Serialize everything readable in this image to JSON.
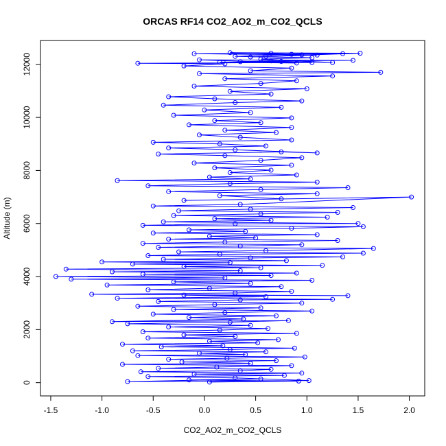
{
  "chart_data": {
    "type": "scatter",
    "title": "ORCAS RF14 CO2_AO2_m_CO2_QCLS",
    "xlabel": "CO2_AO2_m_CO2_QCLS",
    "ylabel": "Altitude (m)",
    "xlim": [
      -1.6,
      2.15
    ],
    "ylim": [
      -500,
      12900
    ],
    "x_ticks": [
      -1.5,
      -1.0,
      -0.5,
      0.0,
      0.5,
      1.0,
      1.5,
      2.0
    ],
    "x_tick_labels": [
      "-1.5",
      "-1.0",
      "-0.5",
      "0.0",
      "0.5",
      "1.0",
      "1.5",
      "2.0"
    ],
    "y_ticks": [
      0,
      2000,
      4000,
      6000,
      8000,
      10000,
      12000
    ],
    "y_tick_labels": [
      "0",
      "2000",
      "4000",
      "6000",
      "8000",
      "10000",
      "12000"
    ],
    "grid": false,
    "legend": "none",
    "marker": "open-circle",
    "connected": true,
    "colors": {
      "series": "#0000ff",
      "axis": "#000000",
      "background": "#ffffff"
    },
    "series": [
      {
        "values": [
          [
            0.05,
            20
          ],
          [
            0.92,
            60
          ],
          [
            -0.15,
            100
          ],
          [
            0.55,
            140
          ],
          [
            -0.75,
            40
          ],
          [
            1.02,
            80
          ],
          [
            0.3,
            180
          ],
          [
            -0.55,
            230
          ],
          [
            0.78,
            270
          ],
          [
            -0.1,
            320
          ],
          [
            0.95,
            360
          ],
          [
            -0.62,
            410
          ],
          [
            0.35,
            450
          ],
          [
            0.65,
            500
          ],
          [
            -0.45,
            540
          ],
          [
            0.12,
            590
          ],
          [
            0.85,
            640
          ],
          [
            -0.8,
            690
          ],
          [
            0.45,
            730
          ],
          [
            -0.22,
            780
          ],
          [
            0.7,
            830
          ],
          [
            -0.35,
            880
          ],
          [
            0.22,
            920
          ],
          [
            0.98,
            970
          ],
          [
            -0.65,
            1020
          ],
          [
            0.4,
            1060
          ],
          [
            -0.05,
            1110
          ],
          [
            0.6,
            1160
          ],
          [
            -0.7,
            1200
          ],
          [
            0.25,
            1250
          ],
          [
            0.88,
            1300
          ],
          [
            -0.42,
            1350
          ],
          [
            0.18,
            1390
          ],
          [
            -0.8,
            1450
          ],
          [
            0.52,
            1500
          ],
          [
            0.05,
            1560
          ],
          [
            0.72,
            1620
          ],
          [
            -0.55,
            1680
          ],
          [
            0.3,
            1740
          ],
          [
            -0.2,
            1800
          ],
          [
            0.9,
            1860
          ],
          [
            -0.6,
            1920
          ],
          [
            0.15,
            1980
          ],
          [
            0.62,
            2040
          ],
          [
            -0.35,
            2100
          ],
          [
            0.45,
            2160
          ],
          [
            -0.75,
            2220
          ],
          [
            0.25,
            2280
          ],
          [
            0.82,
            2340
          ],
          [
            -0.9,
            2300
          ],
          [
            0.38,
            2400
          ],
          [
            -0.15,
            2460
          ],
          [
            0.7,
            2520
          ],
          [
            -0.5,
            2580
          ],
          [
            0.2,
            2640
          ],
          [
            1.05,
            2700
          ],
          [
            -0.3,
            2760
          ],
          [
            0.55,
            2820
          ],
          [
            -0.65,
            2880
          ],
          [
            0.1,
            2940
          ],
          [
            0.95,
            3000
          ],
          [
            -0.45,
            3060
          ],
          [
            0.35,
            3120
          ],
          [
            1.25,
            3140
          ],
          [
            -0.85,
            3180
          ],
          [
            0.6,
            3240
          ],
          [
            -0.2,
            3300
          ],
          [
            1.4,
            3280
          ],
          [
            -1.1,
            3330
          ],
          [
            0.3,
            3380
          ],
          [
            0.85,
            3440
          ],
          [
            -0.55,
            3500
          ],
          [
            0.05,
            3560
          ],
          [
            0.75,
            3620
          ],
          [
            -0.95,
            3680
          ],
          [
            0.45,
            3740
          ],
          [
            -0.3,
            3800
          ],
          [
            1.05,
            3860
          ],
          [
            -1.3,
            3900
          ],
          [
            0.2,
            3950
          ],
          [
            -1.45,
            4000
          ],
          [
            0.65,
            4040
          ],
          [
            -0.6,
            4090
          ],
          [
            0.9,
            4130
          ],
          [
            -0.9,
            4180
          ],
          [
            0.35,
            4220
          ],
          [
            -1.35,
            4280
          ],
          [
            0.55,
            4330
          ],
          [
            -0.2,
            4380
          ],
          [
            1.15,
            4420
          ],
          [
            -0.7,
            4470
          ],
          [
            0.25,
            4520
          ],
          [
            -1.0,
            4550
          ],
          [
            0.8,
            4600
          ],
          [
            -0.4,
            4650
          ],
          [
            0.45,
            4700
          ],
          [
            1.35,
            4740
          ],
          [
            -0.55,
            4790
          ],
          [
            0.15,
            4840
          ],
          [
            1.55,
            4880
          ],
          [
            -0.25,
            4930
          ],
          [
            0.6,
            4980
          ],
          [
            1.65,
            5060
          ],
          [
            -0.45,
            5100
          ],
          [
            0.35,
            5150
          ],
          [
            0.95,
            5200
          ],
          [
            -0.6,
            5250
          ],
          [
            0.2,
            5300
          ],
          [
            1.3,
            5360
          ],
          [
            -0.35,
            5410
          ],
          [
            0.5,
            5460
          ],
          [
            0.05,
            5520
          ],
          [
            1.1,
            5580
          ],
          [
            -0.5,
            5640
          ],
          [
            0.4,
            5700
          ],
          [
            -0.15,
            5760
          ],
          [
            0.85,
            5820
          ],
          [
            1.55,
            5880
          ],
          [
            -0.6,
            5930
          ],
          [
            0.3,
            5990
          ],
          [
            1.5,
            6000
          ],
          [
            -0.4,
            6060
          ],
          [
            0.65,
            6120
          ],
          [
            0.1,
            6180
          ],
          [
            1.2,
            6240
          ],
          [
            -0.3,
            6300
          ],
          [
            0.55,
            6360
          ],
          [
            1.3,
            6420
          ],
          [
            -0.25,
            6480
          ],
          [
            0.45,
            6540
          ],
          [
            1.45,
            6600
          ],
          [
            -0.5,
            6660
          ],
          [
            0.35,
            6720
          ],
          [
            2.02,
            7000
          ],
          [
            -0.2,
            6870
          ],
          [
            0.75,
            6930
          ],
          [
            0.15,
            7050
          ],
          [
            1.1,
            7120
          ],
          [
            -0.35,
            7200
          ],
          [
            0.55,
            7280
          ],
          [
            1.4,
            7350
          ],
          [
            -0.55,
            7420
          ],
          [
            0.25,
            7500
          ],
          [
            1.1,
            7560
          ],
          [
            -0.85,
            7620
          ],
          [
            0.45,
            7680
          ],
          [
            0.05,
            7750
          ],
          [
            0.9,
            7830
          ],
          [
            0.25,
            7920
          ],
          [
            0.65,
            8010
          ],
          [
            0.1,
            8100
          ],
          [
            0.85,
            8200
          ],
          [
            -0.1,
            8280
          ],
          [
            0.55,
            8380
          ],
          [
            0.95,
            8480
          ],
          [
            0.2,
            8560
          ],
          [
            -0.45,
            8620
          ],
          [
            0.75,
            8700
          ],
          [
            1.1,
            8660
          ],
          [
            0.3,
            8780
          ],
          [
            -0.35,
            8850
          ],
          [
            0.6,
            8920
          ],
          [
            0.15,
            9000
          ],
          [
            -0.5,
            9060
          ],
          [
            0.85,
            9150
          ],
          [
            0.35,
            9250
          ],
          [
            -0.05,
            9340
          ],
          [
            0.7,
            9430
          ],
          [
            0.2,
            9520
          ],
          [
            0.85,
            9620
          ],
          [
            -0.15,
            9720
          ],
          [
            0.55,
            9800
          ],
          [
            0.1,
            9880
          ],
          [
            0.85,
            9980
          ],
          [
            -0.3,
            10080
          ],
          [
            0.45,
            10180
          ],
          [
            0.0,
            10280
          ],
          [
            0.75,
            10380
          ],
          [
            -0.4,
            10460
          ],
          [
            0.3,
            10560
          ],
          [
            0.95,
            10620
          ],
          [
            0.1,
            10700
          ],
          [
            -0.35,
            10780
          ],
          [
            0.65,
            10880
          ],
          [
            0.25,
            10980
          ],
          [
            1.0,
            11080
          ],
          [
            -0.1,
            11180
          ],
          [
            0.55,
            11280
          ],
          [
            0.9,
            11380
          ],
          [
            0.2,
            11460
          ],
          [
            1.25,
            11560
          ],
          [
            -0.05,
            11650
          ],
          [
            1.72,
            11700
          ],
          [
            0.45,
            11760
          ],
          [
            0.85,
            11860
          ],
          [
            -0.2,
            11940
          ],
          [
            0.2,
            12020
          ],
          [
            -0.65,
            12040
          ],
          [
            1.05,
            12070
          ],
          [
            0.35,
            12100
          ],
          [
            0.65,
            12130
          ],
          [
            1.45,
            12150
          ],
          [
            -0.05,
            12170
          ],
          [
            0.9,
            12050
          ],
          [
            0.15,
            12080
          ],
          [
            0.75,
            12110
          ],
          [
            1.25,
            12070
          ],
          [
            0.55,
            12200
          ],
          [
            1.05,
            12250
          ],
          [
            0.3,
            12300
          ],
          [
            0.85,
            12380
          ],
          [
            1.35,
            12400
          ],
          [
            0.65,
            12420
          ],
          [
            -0.1,
            12400
          ],
          [
            1.1,
            12350
          ],
          [
            0.45,
            12280
          ],
          [
            1.52,
            12420
          ],
          [
            0.25,
            12440
          ],
          [
            0.95,
            12360
          ],
          [
            0.6,
            12300
          ]
        ]
      }
    ]
  }
}
